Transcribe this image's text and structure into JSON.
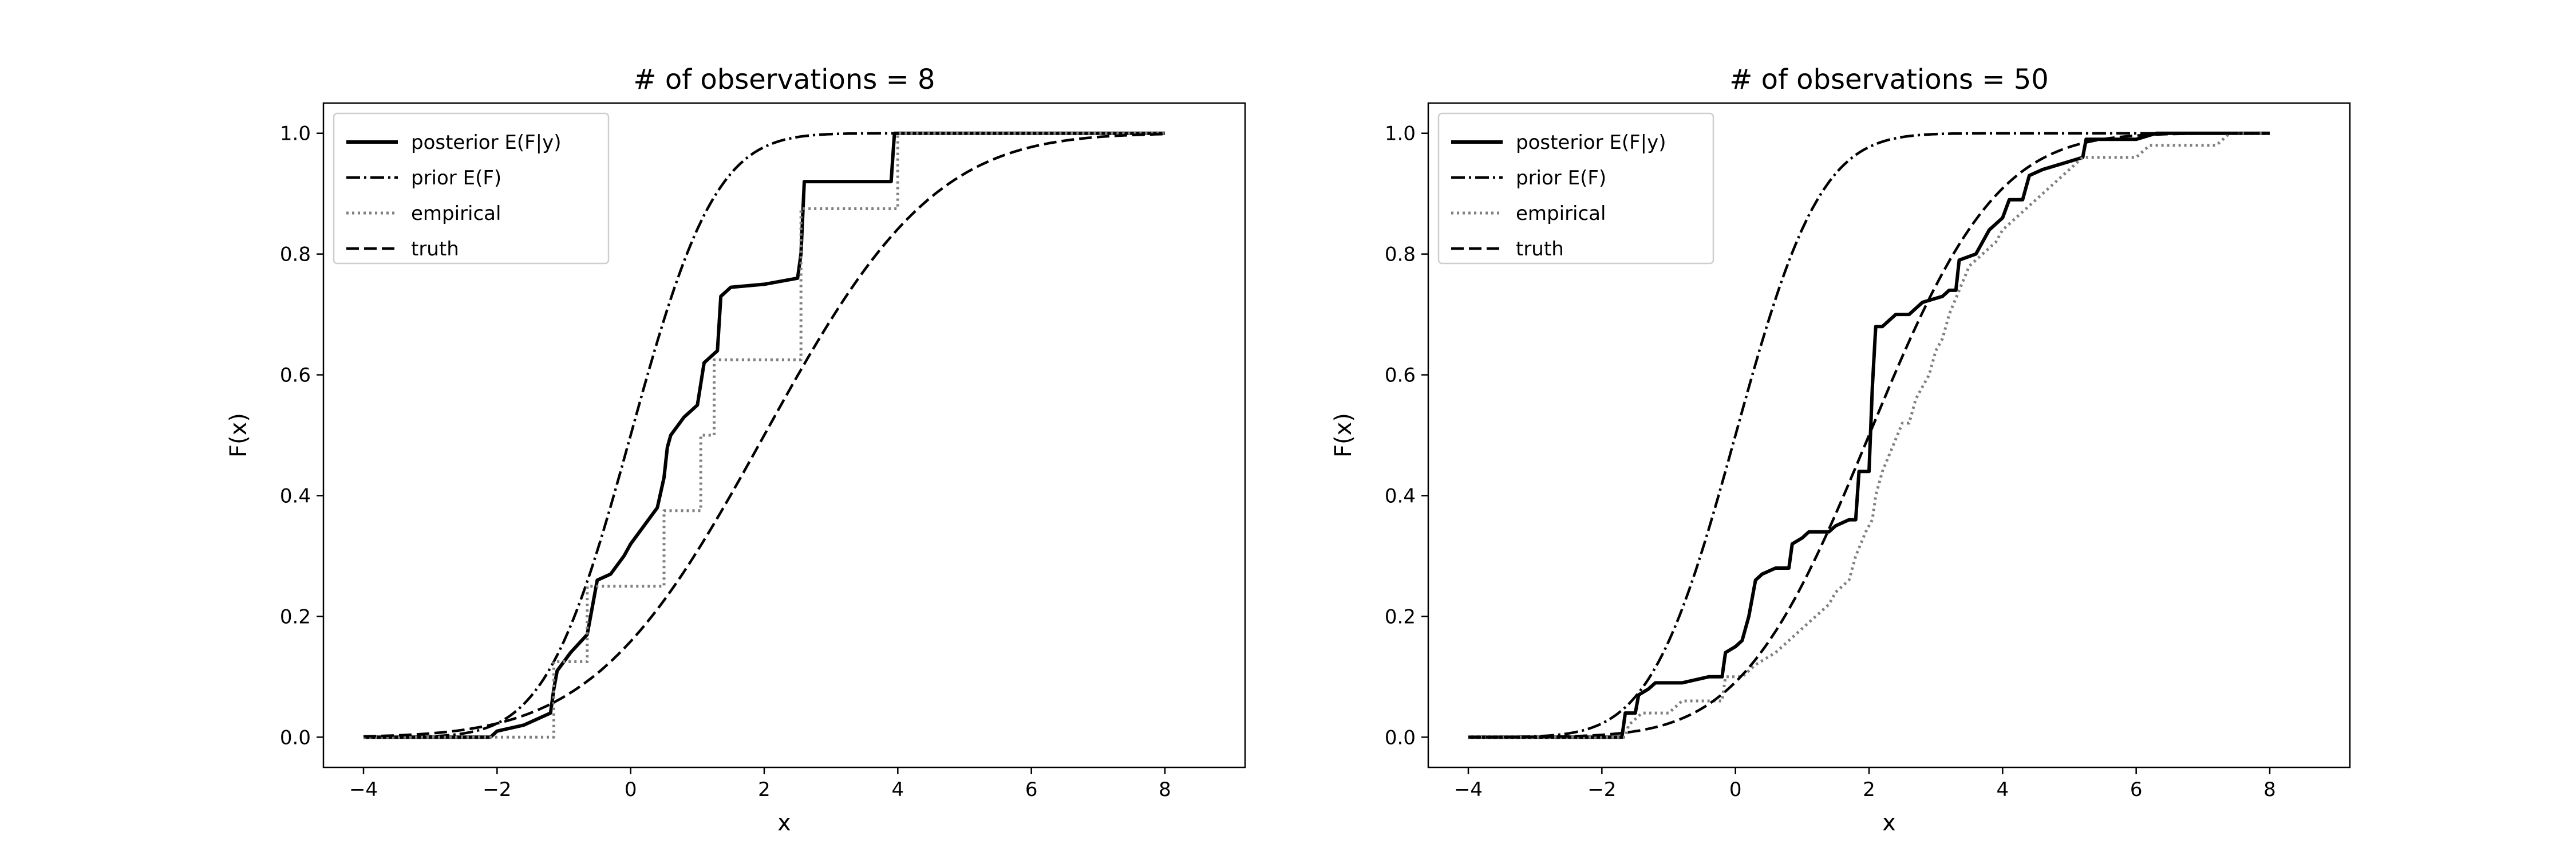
{
  "chart_data": [
    {
      "type": "line",
      "title": "# of observations = 8",
      "xlabel": "x",
      "ylabel": "F(x)",
      "xlim": [
        -4.6,
        9.2
      ],
      "ylim": [
        -0.05,
        1.05
      ],
      "xticks": [
        -4,
        -2,
        0,
        2,
        4,
        6,
        8
      ],
      "yticks": [
        0.0,
        0.2,
        0.4,
        0.6,
        0.8,
        1.0
      ],
      "xtick_labels": [
        "−4",
        "−2",
        "0",
        "2",
        "4",
        "6",
        "8"
      ],
      "ytick_labels": [
        "0.0",
        "0.2",
        "0.4",
        "0.6",
        "0.8",
        "1.0"
      ],
      "grid": false,
      "legend_position": "top-left",
      "legend": [
        "posterior E(F|y)",
        "prior E(F)",
        "empirical",
        "truth"
      ],
      "series": [
        {
          "name": "posterior E(F|y)",
          "style": "solid",
          "color": "#000000",
          "points": [
            [
              -4,
              0.0
            ],
            [
              -2.1,
              0.0
            ],
            [
              -2.0,
              0.01
            ],
            [
              -1.6,
              0.02
            ],
            [
              -1.2,
              0.04
            ],
            [
              -1.15,
              0.08
            ],
            [
              -1.1,
              0.11
            ],
            [
              -0.9,
              0.14
            ],
            [
              -0.65,
              0.17
            ],
            [
              -0.6,
              0.2
            ],
            [
              -0.5,
              0.26
            ],
            [
              -0.3,
              0.27
            ],
            [
              -0.1,
              0.3
            ],
            [
              0.0,
              0.32
            ],
            [
              0.2,
              0.35
            ],
            [
              0.4,
              0.38
            ],
            [
              0.5,
              0.43
            ],
            [
              0.55,
              0.48
            ],
            [
              0.6,
              0.5
            ],
            [
              0.8,
              0.53
            ],
            [
              1.0,
              0.55
            ],
            [
              1.1,
              0.62
            ],
            [
              1.2,
              0.63
            ],
            [
              1.3,
              0.64
            ],
            [
              1.35,
              0.73
            ],
            [
              1.5,
              0.745
            ],
            [
              2.0,
              0.75
            ],
            [
              2.5,
              0.76
            ],
            [
              2.55,
              0.8
            ],
            [
              2.6,
              0.92
            ],
            [
              3.9,
              0.92
            ],
            [
              3.95,
              1.0
            ],
            [
              8,
              1.0
            ]
          ]
        },
        {
          "name": "prior E(F)",
          "style": "dashdot",
          "color": "#000000",
          "function": "normal_cdf",
          "mean": 0,
          "sd": 1,
          "x_range": [
            -4,
            8
          ]
        },
        {
          "name": "empirical",
          "style": "dotted",
          "color": "#808080",
          "points": [
            [
              -4,
              0.0
            ],
            [
              -1.15,
              0.0
            ],
            [
              -1.15,
              0.125
            ],
            [
              -0.65,
              0.125
            ],
            [
              -0.65,
              0.25
            ],
            [
              0.5,
              0.25
            ],
            [
              0.5,
              0.375
            ],
            [
              1.05,
              0.375
            ],
            [
              1.05,
              0.5
            ],
            [
              1.25,
              0.5
            ],
            [
              1.25,
              0.625
            ],
            [
              2.55,
              0.625
            ],
            [
              2.55,
              0.875
            ],
            [
              4.0,
              0.875
            ],
            [
              4.0,
              1.0
            ],
            [
              8,
              1.0
            ]
          ]
        },
        {
          "name": "truth",
          "style": "dashed",
          "color": "#000000",
          "function": "normal_cdf",
          "mean": 2,
          "sd": 2,
          "x_range": [
            -4,
            8
          ]
        }
      ]
    },
    {
      "type": "line",
      "title": "# of observations = 50",
      "xlabel": "x",
      "ylabel": "F(x)",
      "xlim": [
        -4.6,
        9.2
      ],
      "ylim": [
        -0.05,
        1.05
      ],
      "xticks": [
        -4,
        -2,
        0,
        2,
        4,
        6,
        8
      ],
      "yticks": [
        0.0,
        0.2,
        0.4,
        0.6,
        0.8,
        1.0
      ],
      "xtick_labels": [
        "−4",
        "−2",
        "0",
        "2",
        "4",
        "6",
        "8"
      ],
      "ytick_labels": [
        "0.0",
        "0.2",
        "0.4",
        "0.6",
        "0.8",
        "1.0"
      ],
      "grid": false,
      "legend_position": "top-left",
      "legend": [
        "posterior E(F|y)",
        "prior E(F)",
        "empirical",
        "truth"
      ],
      "series": [
        {
          "name": "posterior E(F|y)",
          "style": "solid",
          "color": "#000000",
          "points": [
            [
              -4,
              0.0
            ],
            [
              -1.7,
              0.0
            ],
            [
              -1.65,
              0.04
            ],
            [
              -1.5,
              0.04
            ],
            [
              -1.45,
              0.07
            ],
            [
              -1.3,
              0.08
            ],
            [
              -1.2,
              0.09
            ],
            [
              -0.8,
              0.09
            ],
            [
              -0.4,
              0.1
            ],
            [
              -0.2,
              0.1
            ],
            [
              -0.15,
              0.14
            ],
            [
              0.0,
              0.15
            ],
            [
              0.1,
              0.16
            ],
            [
              0.2,
              0.2
            ],
            [
              0.3,
              0.26
            ],
            [
              0.4,
              0.27
            ],
            [
              0.6,
              0.28
            ],
            [
              0.8,
              0.28
            ],
            [
              0.85,
              0.32
            ],
            [
              1.0,
              0.33
            ],
            [
              1.1,
              0.34
            ],
            [
              1.4,
              0.34
            ],
            [
              1.5,
              0.35
            ],
            [
              1.7,
              0.36
            ],
            [
              1.8,
              0.36
            ],
            [
              1.85,
              0.44
            ],
            [
              2.0,
              0.44
            ],
            [
              2.05,
              0.58
            ],
            [
              2.1,
              0.68
            ],
            [
              2.2,
              0.68
            ],
            [
              2.3,
              0.69
            ],
            [
              2.4,
              0.7
            ],
            [
              2.6,
              0.7
            ],
            [
              2.7,
              0.71
            ],
            [
              2.8,
              0.72
            ],
            [
              3.1,
              0.73
            ],
            [
              3.2,
              0.74
            ],
            [
              3.3,
              0.74
            ],
            [
              3.35,
              0.79
            ],
            [
              3.6,
              0.8
            ],
            [
              3.8,
              0.84
            ],
            [
              4.0,
              0.86
            ],
            [
              4.1,
              0.89
            ],
            [
              4.3,
              0.89
            ],
            [
              4.4,
              0.93
            ],
            [
              4.6,
              0.94
            ],
            [
              4.9,
              0.95
            ],
            [
              5.2,
              0.96
            ],
            [
              5.25,
              0.99
            ],
            [
              6.0,
              0.99
            ],
            [
              6.3,
              1.0
            ],
            [
              8,
              1.0
            ]
          ]
        },
        {
          "name": "prior E(F)",
          "style": "dashdot",
          "color": "#000000",
          "function": "normal_cdf",
          "mean": 0,
          "sd": 1,
          "x_range": [
            -4,
            8
          ]
        },
        {
          "name": "empirical",
          "style": "dotted",
          "color": "#808080",
          "points": [
            [
              -4,
              0.0
            ],
            [
              -1.65,
              0.0
            ],
            [
              -1.6,
              0.02
            ],
            [
              -1.4,
              0.04
            ],
            [
              -1.0,
              0.04
            ],
            [
              -0.8,
              0.06
            ],
            [
              -0.2,
              0.06
            ],
            [
              -0.15,
              0.1
            ],
            [
              0.1,
              0.1
            ],
            [
              0.3,
              0.12
            ],
            [
              0.6,
              0.14
            ],
            [
              0.8,
              0.16
            ],
            [
              1.0,
              0.18
            ],
            [
              1.2,
              0.2
            ],
            [
              1.4,
              0.22
            ],
            [
              1.5,
              0.24
            ],
            [
              1.7,
              0.26
            ],
            [
              1.8,
              0.3
            ],
            [
              1.95,
              0.34
            ],
            [
              2.05,
              0.36
            ],
            [
              2.1,
              0.4
            ],
            [
              2.2,
              0.44
            ],
            [
              2.35,
              0.48
            ],
            [
              2.5,
              0.52
            ],
            [
              2.6,
              0.52
            ],
            [
              2.7,
              0.56
            ],
            [
              2.9,
              0.6
            ],
            [
              3.0,
              0.64
            ],
            [
              3.1,
              0.66
            ],
            [
              3.2,
              0.7
            ],
            [
              3.35,
              0.74
            ],
            [
              3.5,
              0.78
            ],
            [
              3.7,
              0.8
            ],
            [
              3.9,
              0.82
            ],
            [
              4.0,
              0.84
            ],
            [
              4.2,
              0.86
            ],
            [
              4.4,
              0.88
            ],
            [
              4.6,
              0.9
            ],
            [
              4.8,
              0.92
            ],
            [
              5.0,
              0.94
            ],
            [
              5.2,
              0.96
            ],
            [
              6.0,
              0.96
            ],
            [
              6.2,
              0.98
            ],
            [
              7.2,
              0.98
            ],
            [
              7.4,
              1.0
            ],
            [
              8,
              1.0
            ]
          ]
        },
        {
          "name": "truth",
          "style": "dashed",
          "color": "#000000",
          "function": "normal_cdf",
          "mean": 2,
          "sd": 1.5,
          "x_range": [
            -4,
            8
          ]
        }
      ]
    }
  ]
}
